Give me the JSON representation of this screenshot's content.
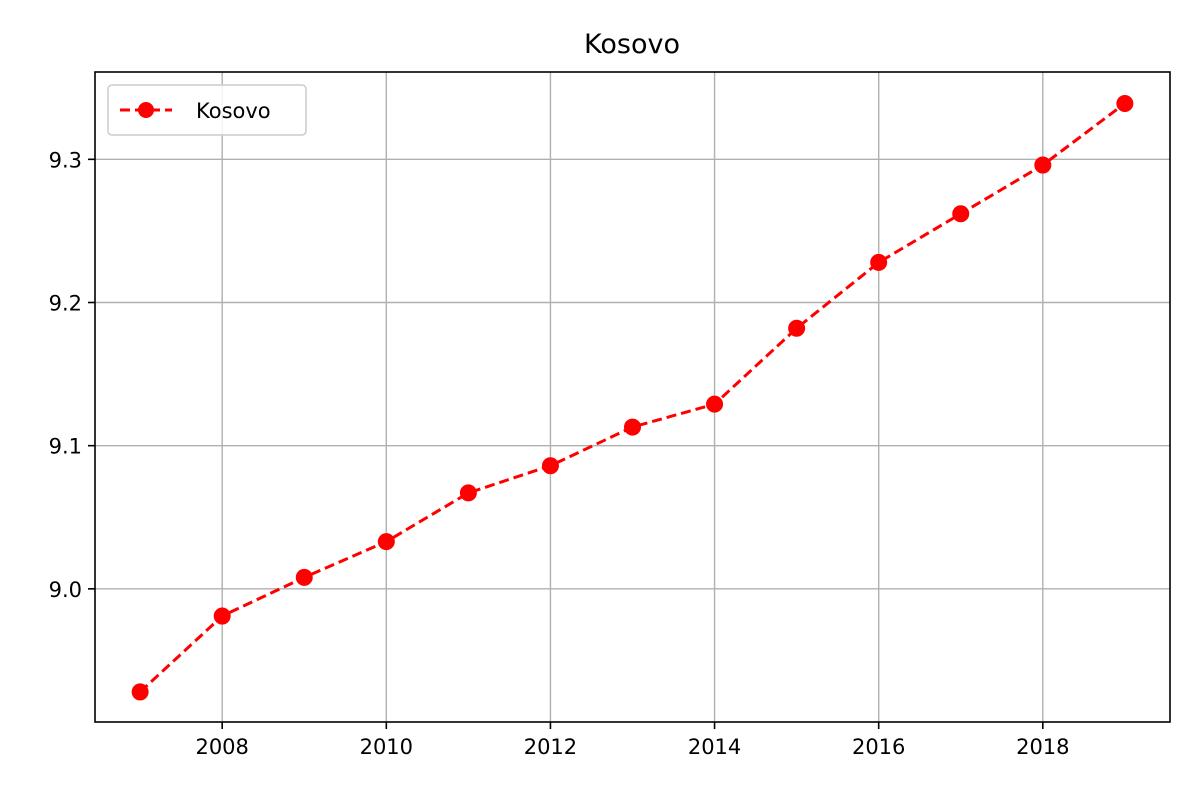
{
  "chart_data": {
    "type": "line",
    "title": "Kosovo",
    "xlabel": "",
    "ylabel": "",
    "xlim": [
      2006.45,
      2019.55
    ],
    "ylim": [
      8.907,
      9.361
    ],
    "xticks": [
      2008,
      2010,
      2012,
      2014,
      2016,
      2018
    ],
    "yticks": [
      9.0,
      9.1,
      9.2,
      9.3
    ],
    "ytick_labels": [
      "9.0",
      "9.1",
      "9.2",
      "9.3"
    ],
    "grid": true,
    "legend_position": "upper-left",
    "series": [
      {
        "name": "Kosovo",
        "color": "#ff0000",
        "line_style": "dashed",
        "marker": "circle",
        "x": [
          2007,
          2008,
          2009,
          2010,
          2011,
          2012,
          2013,
          2014,
          2015,
          2016,
          2017,
          2018,
          2019
        ],
        "y": [
          8.928,
          8.981,
          9.008,
          9.033,
          9.067,
          9.086,
          9.113,
          9.129,
          9.182,
          9.228,
          9.262,
          9.296,
          9.339
        ]
      }
    ]
  }
}
